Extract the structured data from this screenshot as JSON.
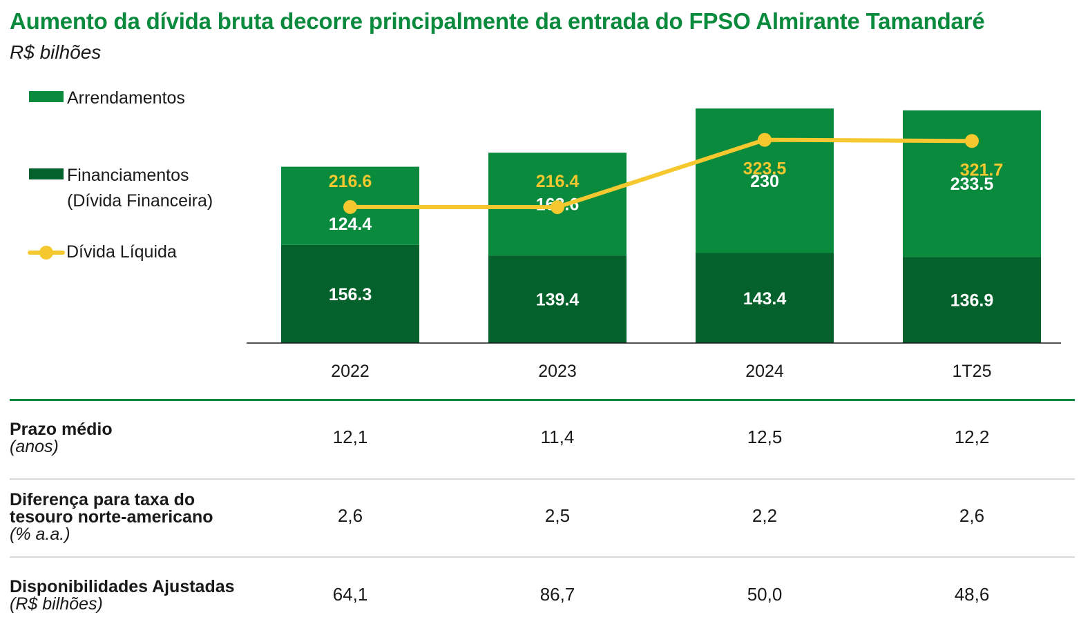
{
  "header": {
    "title": "Aumento da dívida bruta decorre principalmente da entrada do FPSO Almirante Tamandaré",
    "subtitle": "R$ bilhões"
  },
  "legend": {
    "arrendamentos": "Arrendamentos",
    "financiamentos_line1": "Financiamentos",
    "financiamentos_line2": "(Dívida Financeira)",
    "divida_liquida": "Dívida Líquida"
  },
  "colors": {
    "arrendamentos": "#0a8a3c",
    "financiamentos": "#05612b",
    "divida_liquida": "#f5c830",
    "title": "#0a8a3c"
  },
  "chart_data": {
    "type": "bar",
    "stacked": true,
    "categories": [
      "2022",
      "2023",
      "2024",
      "1T25"
    ],
    "series": [
      {
        "name": "Financiamentos (Dívida Financeira)",
        "values": [
          156.3,
          139.4,
          143.4,
          136.9
        ],
        "color": "#05612b"
      },
      {
        "name": "Arrendamentos",
        "values": [
          124.4,
          163.6,
          230,
          233.5
        ],
        "color": "#0a8a3c"
      }
    ],
    "line_series": {
      "name": "Dívida Líquida",
      "values": [
        216.6,
        216.4,
        323.5,
        321.7
      ],
      "color": "#f5c830"
    },
    "ylim": [
      0,
      380
    ],
    "legend": "left",
    "grid": false
  },
  "table": {
    "rows": [
      {
        "label": "Prazo médio",
        "unit": "(anos)",
        "values": [
          "12,1",
          "11,4",
          "12,5",
          "12,2"
        ]
      },
      {
        "label_line1": "Diferença para taxa do",
        "label_line2": "tesouro norte-americano",
        "unit": "(% a.a.)",
        "values": [
          "2,6",
          "2,5",
          "2,2",
          "2,6"
        ]
      },
      {
        "label": "Disponibilidades Ajustadas",
        "unit": "(R$ bilhões)",
        "values": [
          "64,1",
          "86,7",
          "50,0",
          "48,6"
        ]
      }
    ]
  }
}
